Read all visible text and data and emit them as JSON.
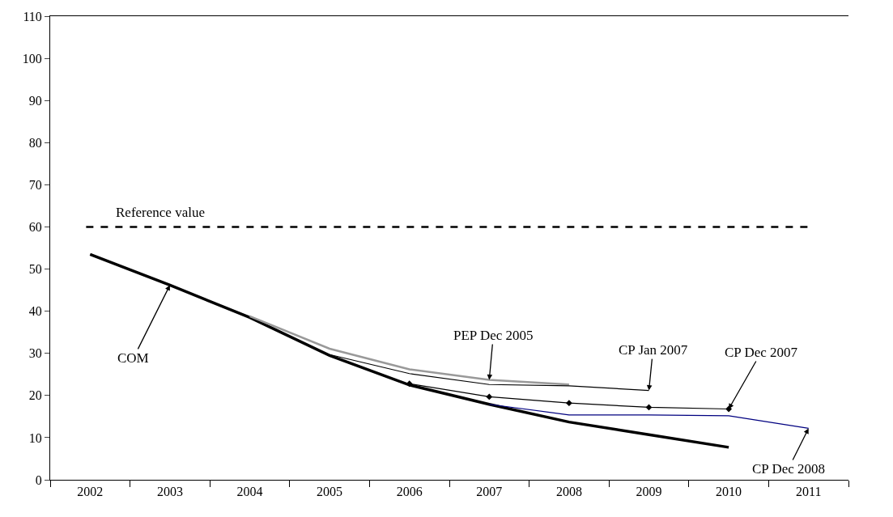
{
  "chart_data": {
    "type": "line",
    "categories": [
      "2002",
      "2003",
      "2004",
      "2005",
      "2006",
      "2007",
      "2008",
      "2009",
      "2010",
      "2011"
    ],
    "series": [
      {
        "color": "#000000",
        "values": [
          53.5,
          46.2,
          38.5,
          29.5,
          22.5,
          17.9,
          13.7,
          10.7,
          7.7,
          null
        ]
      },
      {
        "color": "#999999",
        "values": [
          null,
          null,
          38.8,
          31.1,
          26.2,
          23.7,
          22.6,
          null,
          null,
          null
        ]
      },
      {
        "color": "#000000",
        "values": [
          null,
          null,
          null,
          29.7,
          25.2,
          22.6,
          22.3,
          21.2,
          null,
          null
        ]
      },
      {
        "color": "#000000",
        "marker": "diamond",
        "values": [
          null,
          null,
          null,
          null,
          22.8,
          19.7,
          18.2,
          17.2,
          16.8,
          null
        ]
      },
      {
        "color": "#000080",
        "values": [
          null,
          null,
          null,
          null,
          null,
          17.9,
          15.4,
          15.4,
          15.2,
          12.2
        ]
      }
    ],
    "ylim": [
      0,
      110
    ],
    "yticks": [
      0,
      10,
      20,
      30,
      40,
      50,
      60,
      70,
      80,
      90,
      100,
      110
    ],
    "ref_lines": [
      {
        "axis": "y",
        "value": 60,
        "label": "Reference value",
        "color": "#000000",
        "line_style": "dashed"
      }
    ],
    "annotations": [
      {
        "text": "COM",
        "x": "2003",
        "y": 46.2
      },
      {
        "text": "PEP Dec 2005",
        "x": "2007",
        "y": 23.7
      },
      {
        "text": "CP Jan 2007",
        "x": "2009",
        "y": 21.2
      },
      {
        "text": "CP Dec 2007",
        "x": "2010",
        "y": 16.8
      },
      {
        "text": "CP Dec 2008",
        "x": "2011",
        "y": 12.2
      }
    ],
    "marker": "none",
    "line_style": "solid"
  }
}
